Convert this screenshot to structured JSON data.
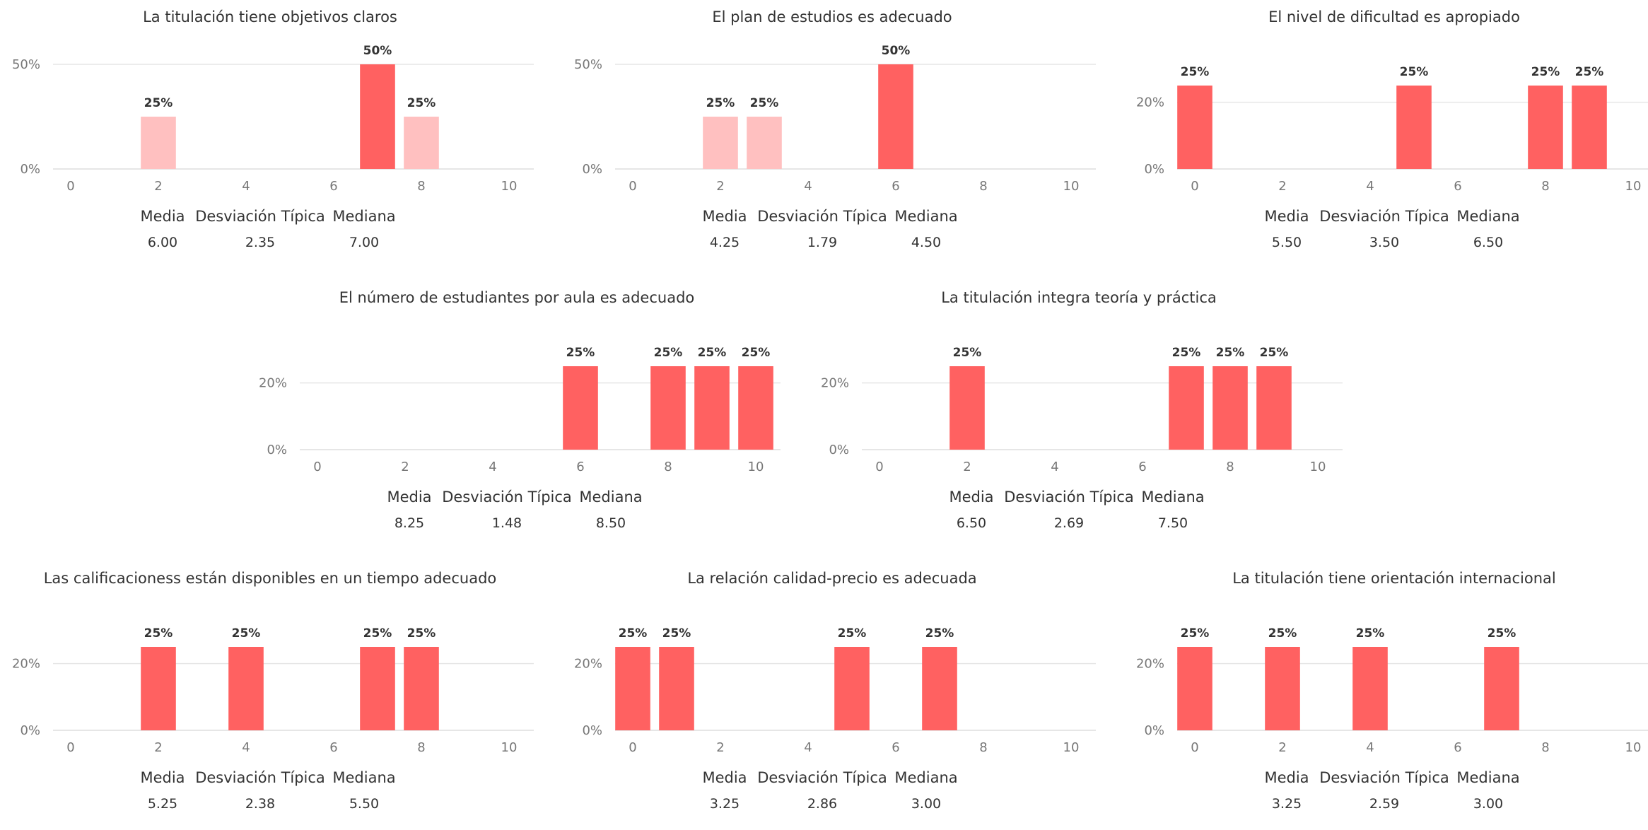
{
  "colors": {
    "bar": "#ff6161",
    "bar_light": "#ffc0c0",
    "grid": "#e6e6e6",
    "text": "#333333",
    "tick": "#777777"
  },
  "stat_labels": {
    "mean": "Media",
    "sd": "Desviación Típica",
    "median": "Mediana"
  },
  "chart_data": [
    {
      "type": "bar",
      "title": "La titulación tiene objetivos claros",
      "xlim": [
        0,
        10
      ],
      "xticks": [
        0,
        2,
        4,
        6,
        8,
        10
      ],
      "ylim": [
        0,
        50
      ],
      "yticks": [
        0,
        50
      ],
      "bars": [
        {
          "x": 2,
          "value": 25,
          "label": "25%",
          "highlight": false
        },
        {
          "x": 7,
          "value": 50,
          "label": "50%",
          "highlight": true
        },
        {
          "x": 8,
          "value": 25,
          "label": "25%",
          "highlight": false
        }
      ],
      "stats": {
        "mean": "6.00",
        "sd": "2.35",
        "median": "7.00"
      }
    },
    {
      "type": "bar",
      "title": "El plan de estudios es adecuado",
      "xlim": [
        0,
        10
      ],
      "xticks": [
        0,
        2,
        4,
        6,
        8,
        10
      ],
      "ylim": [
        0,
        50
      ],
      "yticks": [
        0,
        50
      ],
      "bars": [
        {
          "x": 2,
          "value": 25,
          "label": "25%",
          "highlight": false
        },
        {
          "x": 3,
          "value": 25,
          "label": "25%",
          "highlight": false
        },
        {
          "x": 6,
          "value": 50,
          "label": "50%",
          "highlight": true
        }
      ],
      "stats": {
        "mean": "4.25",
        "sd": "1.79",
        "median": "4.50"
      }
    },
    {
      "type": "bar",
      "title": "El nivel de dificultad es apropiado",
      "xlim": [
        0,
        10
      ],
      "xticks": [
        0,
        2,
        4,
        6,
        8,
        10
      ],
      "ylim": [
        0,
        25
      ],
      "yticks": [
        0,
        20
      ],
      "bars": [
        {
          "x": 0,
          "value": 25,
          "label": "25%",
          "highlight": true
        },
        {
          "x": 5,
          "value": 25,
          "label": "25%",
          "highlight": true
        },
        {
          "x": 8,
          "value": 25,
          "label": "25%",
          "highlight": true
        },
        {
          "x": 9,
          "value": 25,
          "label": "25%",
          "highlight": true
        }
      ],
      "stats": {
        "mean": "5.50",
        "sd": "3.50",
        "median": "6.50"
      }
    },
    {
      "type": "bar",
      "title": "El número de estudiantes por aula es adecuado",
      "xlim": [
        0,
        10
      ],
      "xticks": [
        0,
        2,
        4,
        6,
        8,
        10
      ],
      "ylim": [
        0,
        25
      ],
      "yticks": [
        0,
        20
      ],
      "bars": [
        {
          "x": 6,
          "value": 25,
          "label": "25%",
          "highlight": true
        },
        {
          "x": 8,
          "value": 25,
          "label": "25%",
          "highlight": true
        },
        {
          "x": 9,
          "value": 25,
          "label": "25%",
          "highlight": true
        },
        {
          "x": 10,
          "value": 25,
          "label": "25%",
          "highlight": true
        }
      ],
      "stats": {
        "mean": "8.25",
        "sd": "1.48",
        "median": "8.50"
      }
    },
    {
      "type": "bar",
      "title": "La titulación integra teoría y práctica",
      "xlim": [
        0,
        10
      ],
      "xticks": [
        0,
        2,
        4,
        6,
        8,
        10
      ],
      "ylim": [
        0,
        25
      ],
      "yticks": [
        0,
        20
      ],
      "bars": [
        {
          "x": 2,
          "value": 25,
          "label": "25%",
          "highlight": true
        },
        {
          "x": 7,
          "value": 25,
          "label": "25%",
          "highlight": true
        },
        {
          "x": 8,
          "value": 25,
          "label": "25%",
          "highlight": true
        },
        {
          "x": 9,
          "value": 25,
          "label": "25%",
          "highlight": true
        }
      ],
      "stats": {
        "mean": "6.50",
        "sd": "2.69",
        "median": "7.50"
      }
    },
    {
      "type": "bar",
      "title": "Las calificacioness están disponibles en un tiempo adecuado",
      "xlim": [
        0,
        10
      ],
      "xticks": [
        0,
        2,
        4,
        6,
        8,
        10
      ],
      "ylim": [
        0,
        25
      ],
      "yticks": [
        0,
        20
      ],
      "bars": [
        {
          "x": 2,
          "value": 25,
          "label": "25%",
          "highlight": true
        },
        {
          "x": 4,
          "value": 25,
          "label": "25%",
          "highlight": true
        },
        {
          "x": 7,
          "value": 25,
          "label": "25%",
          "highlight": true
        },
        {
          "x": 8,
          "value": 25,
          "label": "25%",
          "highlight": true
        }
      ],
      "stats": {
        "mean": "5.25",
        "sd": "2.38",
        "median": "5.50"
      }
    },
    {
      "type": "bar",
      "title": "La relación calidad-precio es adecuada",
      "xlim": [
        0,
        10
      ],
      "xticks": [
        0,
        2,
        4,
        6,
        8,
        10
      ],
      "ylim": [
        0,
        25
      ],
      "yticks": [
        0,
        20
      ],
      "bars": [
        {
          "x": 0,
          "value": 25,
          "label": "25%",
          "highlight": true
        },
        {
          "x": 1,
          "value": 25,
          "label": "25%",
          "highlight": true
        },
        {
          "x": 5,
          "value": 25,
          "label": "25%",
          "highlight": true
        },
        {
          "x": 7,
          "value": 25,
          "label": "25%",
          "highlight": true
        }
      ],
      "stats": {
        "mean": "3.25",
        "sd": "2.86",
        "median": "3.00"
      }
    },
    {
      "type": "bar",
      "title": "La titulación tiene orientación internacional",
      "xlim": [
        0,
        10
      ],
      "xticks": [
        0,
        2,
        4,
        6,
        8,
        10
      ],
      "ylim": [
        0,
        25
      ],
      "yticks": [
        0,
        20
      ],
      "bars": [
        {
          "x": 0,
          "value": 25,
          "label": "25%",
          "highlight": true
        },
        {
          "x": 2,
          "value": 25,
          "label": "25%",
          "highlight": true
        },
        {
          "x": 4,
          "value": 25,
          "label": "25%",
          "highlight": true
        },
        {
          "x": 7,
          "value": 25,
          "label": "25%",
          "highlight": true
        }
      ],
      "stats": {
        "mean": "3.25",
        "sd": "2.59",
        "median": "3.00"
      }
    }
  ]
}
